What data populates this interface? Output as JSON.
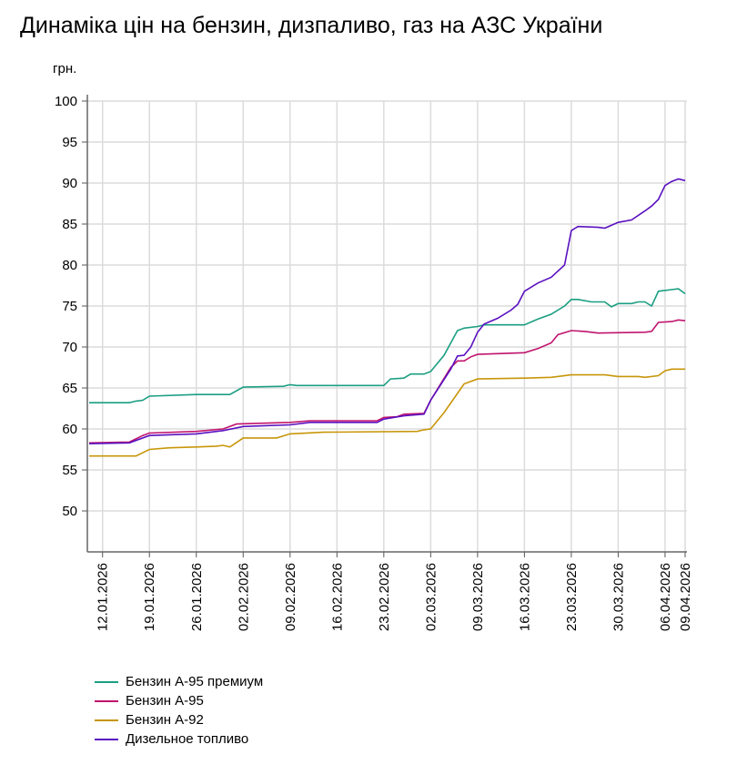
{
  "title": "Динаміка цін на бензин, дизпаливо, газ на АЗС України",
  "chart_data": {
    "type": "line",
    "title": "Динаміка цін на бензин, дизпаливо, газ на АЗС України",
    "ylabel": "грн.",
    "xlabel": "",
    "ylim": [
      45,
      100
    ],
    "yticks": [
      50,
      55,
      60,
      65,
      70,
      75,
      80,
      85,
      90,
      95,
      100
    ],
    "xlim": [
      "2026-01-10",
      "2026-04-09"
    ],
    "xticks": [
      "12.01.2026",
      "19.01.2026",
      "26.01.2026",
      "02.02.2026",
      "09.02.2026",
      "16.02.2026",
      "23.02.2026",
      "02.03.2026",
      "09.03.2026",
      "16.03.2026",
      "23.03.2026",
      "30.03.2026",
      "06.04.2026",
      "09.04.2026"
    ],
    "grid": true,
    "legend": "bottom-left",
    "series": [
      {
        "name": "Бензин А-95 премиум",
        "color": "#1a9e82",
        "points": [
          [
            "2026-01-10",
            63.2
          ],
          [
            "2026-01-16",
            63.2
          ],
          [
            "2026-01-17",
            63.4
          ],
          [
            "2026-01-18",
            63.5
          ],
          [
            "2026-01-19",
            64.0
          ],
          [
            "2026-01-26",
            64.2
          ],
          [
            "2026-01-31",
            64.2
          ],
          [
            "2026-02-02",
            65.1
          ],
          [
            "2026-02-08",
            65.2
          ],
          [
            "2026-02-09",
            65.4
          ],
          [
            "2026-02-10",
            65.3
          ],
          [
            "2026-02-23",
            65.3
          ],
          [
            "2026-02-24",
            66.1
          ],
          [
            "2026-02-26",
            66.2
          ],
          [
            "2026-02-27",
            66.7
          ],
          [
            "2026-03-01",
            66.7
          ],
          [
            "2026-03-02",
            67.0
          ],
          [
            "2026-03-04",
            69.0
          ],
          [
            "2026-03-06",
            72.0
          ],
          [
            "2026-03-07",
            72.3
          ],
          [
            "2026-03-09",
            72.5
          ],
          [
            "2026-03-10",
            72.7
          ],
          [
            "2026-03-16",
            72.7
          ],
          [
            "2026-03-18",
            73.4
          ],
          [
            "2026-03-20",
            74.0
          ],
          [
            "2026-03-22",
            75.0
          ],
          [
            "2026-03-23",
            75.8
          ],
          [
            "2026-03-24",
            75.8
          ],
          [
            "2026-03-26",
            75.5
          ],
          [
            "2026-03-28",
            75.5
          ],
          [
            "2026-03-29",
            74.9
          ],
          [
            "2026-03-30",
            75.3
          ],
          [
            "2026-04-01",
            75.3
          ],
          [
            "2026-04-02",
            75.5
          ],
          [
            "2026-04-03",
            75.5
          ],
          [
            "2026-04-04",
            75.0
          ],
          [
            "2026-04-05",
            76.8
          ],
          [
            "2026-04-07",
            77.0
          ],
          [
            "2026-04-08",
            77.1
          ],
          [
            "2026-04-09",
            76.5
          ]
        ]
      },
      {
        "name": "Бензин А-95",
        "color": "#c0146e",
        "points": [
          [
            "2026-01-10",
            58.3
          ],
          [
            "2026-01-16",
            58.4
          ],
          [
            "2026-01-18",
            59.2
          ],
          [
            "2026-01-19",
            59.5
          ],
          [
            "2026-01-26",
            59.7
          ],
          [
            "2026-01-30",
            60.0
          ],
          [
            "2026-02-01",
            60.6
          ],
          [
            "2026-02-09",
            60.8
          ],
          [
            "2026-02-12",
            61.0
          ],
          [
            "2026-02-22",
            61.0
          ],
          [
            "2026-02-23",
            61.4
          ],
          [
            "2026-02-25",
            61.5
          ],
          [
            "2026-02-26",
            61.8
          ],
          [
            "2026-03-01",
            61.9
          ],
          [
            "2026-03-02",
            63.5
          ],
          [
            "2026-03-05",
            67.5
          ],
          [
            "2026-03-06",
            68.3
          ],
          [
            "2026-03-07",
            68.3
          ],
          [
            "2026-03-08",
            68.8
          ],
          [
            "2026-03-09",
            69.1
          ],
          [
            "2026-03-16",
            69.3
          ],
          [
            "2026-03-18",
            69.8
          ],
          [
            "2026-03-20",
            70.5
          ],
          [
            "2026-03-21",
            71.5
          ],
          [
            "2026-03-23",
            72.0
          ],
          [
            "2026-03-25",
            71.9
          ],
          [
            "2026-03-27",
            71.7
          ],
          [
            "2026-04-03",
            71.8
          ],
          [
            "2026-04-04",
            71.9
          ],
          [
            "2026-04-05",
            73.0
          ],
          [
            "2026-04-07",
            73.1
          ],
          [
            "2026-04-08",
            73.3
          ],
          [
            "2026-04-09",
            73.2
          ]
        ]
      },
      {
        "name": "Бензин А-92",
        "color": "#c8960a",
        "points": [
          [
            "2026-01-10",
            56.7
          ],
          [
            "2026-01-17",
            56.7
          ],
          [
            "2026-01-19",
            57.5
          ],
          [
            "2026-01-22",
            57.7
          ],
          [
            "2026-01-26",
            57.8
          ],
          [
            "2026-01-29",
            57.9
          ],
          [
            "2026-01-30",
            58.0
          ],
          [
            "2026-01-31",
            57.8
          ],
          [
            "2026-02-02",
            58.9
          ],
          [
            "2026-02-07",
            58.9
          ],
          [
            "2026-02-09",
            59.4
          ],
          [
            "2026-02-14",
            59.6
          ],
          [
            "2026-02-28",
            59.7
          ],
          [
            "2026-03-01",
            59.9
          ],
          [
            "2026-03-02",
            60.0
          ],
          [
            "2026-03-04",
            62.0
          ],
          [
            "2026-03-07",
            65.5
          ],
          [
            "2026-03-09",
            66.1
          ],
          [
            "2026-03-16",
            66.2
          ],
          [
            "2026-03-20",
            66.3
          ],
          [
            "2026-03-23",
            66.6
          ],
          [
            "2026-03-28",
            66.6
          ],
          [
            "2026-03-30",
            66.4
          ],
          [
            "2026-04-02",
            66.4
          ],
          [
            "2026-04-03",
            66.3
          ],
          [
            "2026-04-05",
            66.5
          ],
          [
            "2026-04-06",
            67.1
          ],
          [
            "2026-04-07",
            67.3
          ],
          [
            "2026-04-09",
            67.3
          ]
        ]
      },
      {
        "name": "Дизельное топливо",
        "color": "#5a10c0",
        "points": [
          [
            "2026-01-10",
            58.2
          ],
          [
            "2026-01-16",
            58.3
          ],
          [
            "2026-01-19",
            59.2
          ],
          [
            "2026-01-26",
            59.4
          ],
          [
            "2026-01-30",
            59.8
          ],
          [
            "2026-02-02",
            60.3
          ],
          [
            "2026-02-09",
            60.5
          ],
          [
            "2026-02-12",
            60.8
          ],
          [
            "2026-02-22",
            60.8
          ],
          [
            "2026-02-23",
            61.2
          ],
          [
            "2026-02-26",
            61.6
          ],
          [
            "2026-03-01",
            61.8
          ],
          [
            "2026-03-02",
            63.5
          ],
          [
            "2026-03-05",
            67.3
          ],
          [
            "2026-03-06",
            68.9
          ],
          [
            "2026-03-07",
            69.0
          ],
          [
            "2026-03-08",
            70.0
          ],
          [
            "2026-03-09",
            71.8
          ],
          [
            "2026-03-10",
            72.8
          ],
          [
            "2026-03-12",
            73.5
          ],
          [
            "2026-03-14",
            74.5
          ],
          [
            "2026-03-15",
            75.2
          ],
          [
            "2026-03-16",
            76.8
          ],
          [
            "2026-03-18",
            77.8
          ],
          [
            "2026-03-20",
            78.5
          ],
          [
            "2026-03-22",
            80.0
          ],
          [
            "2026-03-23",
            84.2
          ],
          [
            "2026-03-24",
            84.7
          ],
          [
            "2026-03-27",
            84.6
          ],
          [
            "2026-03-28",
            84.5
          ],
          [
            "2026-03-30",
            85.2
          ],
          [
            "2026-04-01",
            85.5
          ],
          [
            "2026-04-03",
            86.6
          ],
          [
            "2026-04-04",
            87.2
          ],
          [
            "2026-04-05",
            88.0
          ],
          [
            "2026-04-06",
            89.7
          ],
          [
            "2026-04-07",
            90.2
          ],
          [
            "2026-04-08",
            90.5
          ],
          [
            "2026-04-09",
            90.3
          ]
        ]
      }
    ]
  }
}
